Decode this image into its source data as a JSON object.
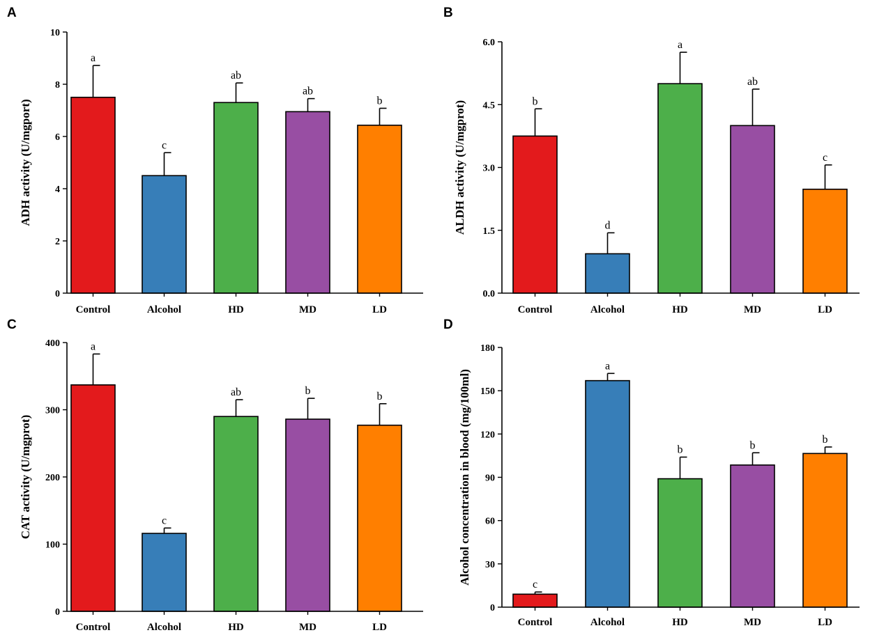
{
  "colors": {
    "Control": "#e31a1c",
    "Alcohol": "#377eb8",
    "HD": "#4daf4a",
    "MD": "#984ea3",
    "LD": "#ff7f00",
    "axis": "#000000"
  },
  "chart_data": [
    {
      "panel": "A",
      "type": "bar",
      "title": "",
      "xlabel": "",
      "ylabel": "ADH activity (U/mgport)",
      "categories": [
        "Control",
        "Alcohol",
        "HD",
        "MD",
        "LD"
      ],
      "values": [
        7.5,
        4.5,
        7.3,
        6.95,
        6.43
      ],
      "errors": [
        1.22,
        0.88,
        0.75,
        0.5,
        0.65
      ],
      "significance": [
        "a",
        "c",
        "ab",
        "ab",
        "b"
      ],
      "ylim": [
        0,
        10
      ],
      "yticks": [
        0,
        2,
        4,
        6,
        8,
        10
      ],
      "ytick_labels": [
        "0",
        "2",
        "4",
        "6",
        "8",
        "10"
      ],
      "grid": false
    },
    {
      "panel": "B",
      "type": "bar",
      "title": "",
      "xlabel": "",
      "ylabel": "ALDH activity (U/mgprot)",
      "categories": [
        "Control",
        "Alcohol",
        "HD",
        "MD",
        "LD"
      ],
      "values": [
        3.75,
        0.94,
        5.0,
        4.0,
        2.48
      ],
      "errors": [
        0.65,
        0.5,
        0.75,
        0.87,
        0.58
      ],
      "significance": [
        "b",
        "d",
        "a",
        "ab",
        "c"
      ],
      "ylim": [
        0,
        6.0
      ],
      "yticks": [
        0,
        1.5,
        3.0,
        4.5,
        6.0
      ],
      "ytick_labels": [
        "0.0",
        "1.5",
        "3.0",
        "4.5",
        "6.0"
      ],
      "grid": false
    },
    {
      "panel": "C",
      "type": "bar",
      "title": "",
      "xlabel": "",
      "ylabel": "CAT activity (U/mgprot)",
      "categories": [
        "Control",
        "Alcohol",
        "HD",
        "MD",
        "LD"
      ],
      "values": [
        337,
        116,
        290,
        286,
        277
      ],
      "errors": [
        46,
        8,
        25,
        31,
        32
      ],
      "significance": [
        "a",
        "c",
        "ab",
        "b",
        "b"
      ],
      "ylim": [
        0,
        400
      ],
      "yticks": [
        0,
        100,
        200,
        300,
        400
      ],
      "ytick_labels": [
        "0",
        "100",
        "200",
        "300",
        "400"
      ],
      "grid": false
    },
    {
      "panel": "D",
      "type": "bar",
      "title": "",
      "xlabel": "",
      "ylabel": "Alcohol concentration in blood (mg/100ml)",
      "categories": [
        "Control",
        "Alcohol",
        "HD",
        "MD",
        "LD"
      ],
      "values": [
        9,
        157,
        89,
        98.5,
        106.5
      ],
      "errors": [
        1.5,
        5,
        15,
        8.5,
        4.5
      ],
      "significance": [
        "c",
        "a",
        "b",
        "b",
        "b"
      ],
      "ylim": [
        0,
        180
      ],
      "yticks": [
        0,
        30,
        60,
        90,
        120,
        150,
        180
      ],
      "ytick_labels": [
        "0",
        "30",
        "60",
        "90",
        "120",
        "150",
        "180"
      ],
      "grid": false
    }
  ]
}
